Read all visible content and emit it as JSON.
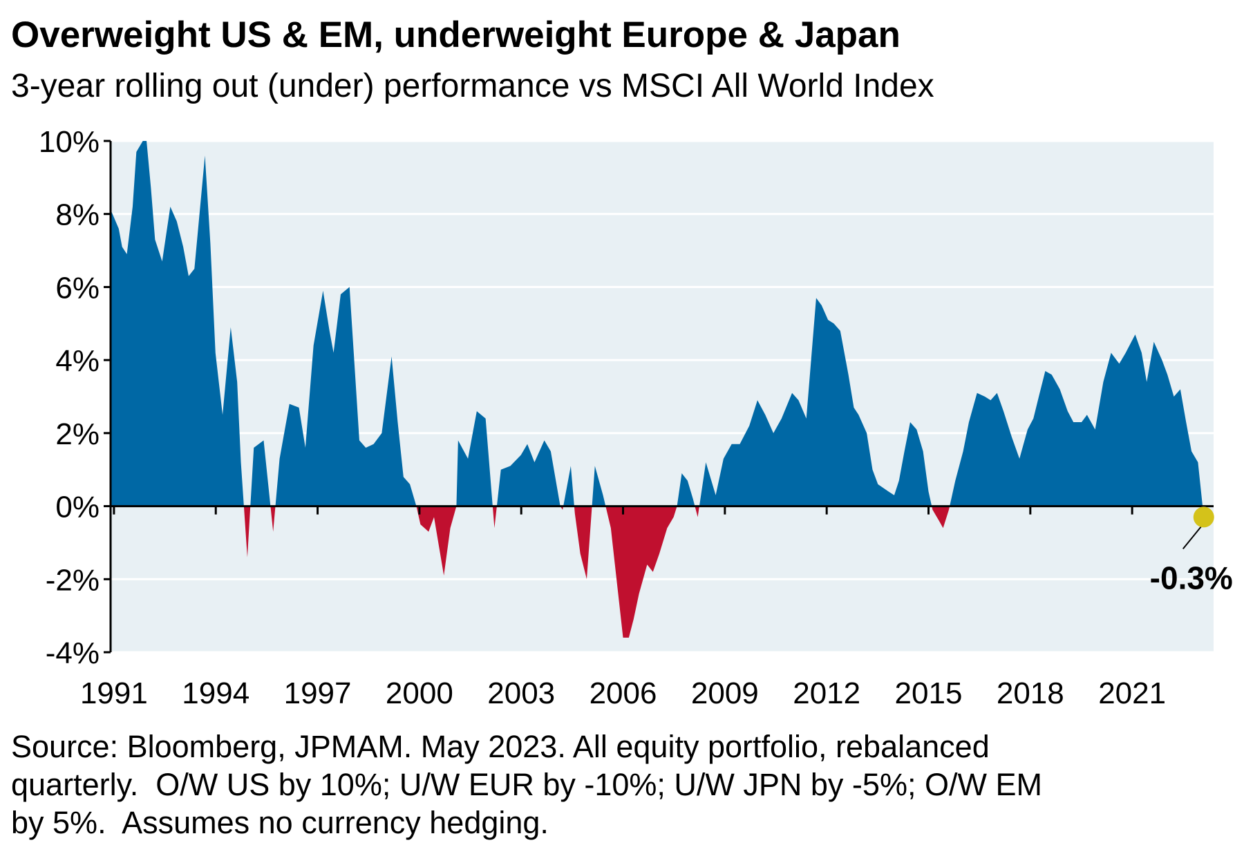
{
  "chart_data": {
    "type": "area",
    "title": "Overweight US & EM, underweight Europe & Japan",
    "subtitle": "3-year rolling out (under) performance vs MSCI All World Index",
    "source": [
      "Source: Bloomberg, JPMAM. May 2023. All equity portfolio, rebalanced",
      "quarterly.  O/W US by 10%; U/W EUR by -10%; U/W JPN by -5%; O/W EM",
      "by 5%.  Assumes no currency hedging."
    ],
    "end_label": "-0.3%",
    "positive_color": "#0068a5",
    "negative_color": "#c0102f",
    "marker_color": "#d4c21a",
    "background": "#e8f0f4",
    "grid": true,
    "xlim": [
      1990.9,
      2023.4
    ],
    "xticks": [
      1991,
      1994,
      1997,
      2000,
      2003,
      2006,
      2009,
      2012,
      2015,
      2018,
      2021
    ],
    "ylim": [
      -4,
      10
    ],
    "yticks": [
      {
        "value": -4,
        "label": "-4%"
      },
      {
        "value": -2,
        "label": "-2%"
      },
      {
        "value": 0,
        "label": "0%"
      },
      {
        "value": 2,
        "label": "2%"
      },
      {
        "value": 4,
        "label": "4%"
      },
      {
        "value": 6,
        "label": "6%"
      },
      {
        "value": 8,
        "label": "8%"
      },
      {
        "value": 10,
        "label": "10%"
      }
    ],
    "x": [
      1990.91,
      1991.14,
      1991.24,
      1991.38,
      1991.55,
      1991.66,
      1991.85,
      1991.95,
      1992.09,
      1992.21,
      1992.42,
      1992.66,
      1992.85,
      1993.04,
      1993.2,
      1993.37,
      1993.68,
      1993.84,
      1993.99,
      1994.2,
      1994.44,
      1994.63,
      1994.74,
      1994.93,
      1995.12,
      1995.41,
      1995.69,
      1995.88,
      1996.17,
      1996.45,
      1996.64,
      1996.88,
      1997.16,
      1997.35,
      1997.47,
      1997.68,
      1997.94,
      1998.23,
      1998.42,
      1998.65,
      1998.89,
      1999.18,
      1999.36,
      1999.53,
      1999.72,
      1999.91,
      2000.03,
      2000.27,
      2000.43,
      2000.72,
      2000.91,
      2001.09,
      2001.14,
      2001.43,
      2001.69,
      2001.95,
      2002.21,
      2002.4,
      2002.68,
      2002.99,
      2003.18,
      2003.39,
      2003.68,
      2003.87,
      2004.15,
      2004.22,
      2004.46,
      2004.58,
      2004.74,
      2004.93,
      2005.17,
      2005.41,
      2005.64,
      2005.88,
      2006.0,
      2006.17,
      2006.31,
      2006.47,
      2006.71,
      2006.88,
      2007.07,
      2007.3,
      2007.49,
      2007.59,
      2007.73,
      2007.9,
      2008.06,
      2008.2,
      2008.44,
      2008.73,
      2008.96,
      2009.2,
      2009.44,
      2009.72,
      2009.96,
      2010.19,
      2010.43,
      2010.67,
      2010.98,
      2011.17,
      2011.4,
      2011.69,
      2011.85,
      2012.04,
      2012.21,
      2012.4,
      2012.64,
      2012.8,
      2012.94,
      2013.18,
      2013.35,
      2013.51,
      2013.82,
      2013.99,
      2014.13,
      2014.29,
      2014.46,
      2014.65,
      2014.84,
      2015.0,
      2015.12,
      2015.31,
      2015.43,
      2015.6,
      2015.79,
      2016.02,
      2016.19,
      2016.43,
      2016.66,
      2016.83,
      2017.02,
      2017.21,
      2017.45,
      2017.68,
      2017.92,
      2018.09,
      2018.25,
      2018.44,
      2018.63,
      2018.87,
      2019.1,
      2019.27,
      2019.51,
      2019.67,
      2019.91,
      2020.15,
      2020.38,
      2020.62,
      2020.81,
      2021.09,
      2021.28,
      2021.43,
      2021.64,
      2021.88,
      2022.04,
      2022.23,
      2022.42,
      2022.59,
      2022.75,
      2022.94,
      2023.11
    ],
    "values": [
      8.1,
      7.6,
      7.1,
      6.9,
      8.2,
      9.7,
      10.0,
      10.1,
      8.7,
      7.3,
      6.7,
      8.2,
      7.8,
      7.1,
      6.3,
      6.5,
      9.6,
      7.2,
      4.2,
      2.5,
      4.9,
      3.4,
      1.2,
      -1.4,
      1.6,
      1.8,
      -0.7,
      1.3,
      2.8,
      2.7,
      1.6,
      4.4,
      5.9,
      4.8,
      4.2,
      5.8,
      6.0,
      1.8,
      1.6,
      1.7,
      2.0,
      4.1,
      2.3,
      0.8,
      0.6,
      0.0,
      -0.5,
      -0.7,
      -0.3,
      -1.9,
      -0.6,
      0.0,
      1.8,
      1.3,
      2.6,
      2.4,
      -0.6,
      1.0,
      1.1,
      1.4,
      1.7,
      1.2,
      1.8,
      1.5,
      0.0,
      -0.1,
      1.1,
      -0.2,
      -1.3,
      -2.0,
      1.1,
      0.3,
      -0.6,
      -2.6,
      -3.6,
      -3.6,
      -3.1,
      -2.4,
      -1.6,
      -1.8,
      -1.3,
      -0.6,
      -0.3,
      0.0,
      0.9,
      0.7,
      0.2,
      -0.3,
      1.2,
      0.3,
      1.3,
      1.7,
      1.7,
      2.2,
      2.9,
      2.5,
      2.0,
      2.4,
      3.1,
      2.9,
      2.4,
      5.7,
      5.5,
      5.1,
      5.0,
      4.8,
      3.6,
      2.7,
      2.5,
      2.0,
      1.0,
      0.6,
      0.4,
      0.3,
      0.7,
      1.5,
      2.3,
      2.1,
      1.5,
      0.4,
      -0.1,
      -0.4,
      -0.6,
      -0.1,
      0.7,
      1.5,
      2.3,
      3.1,
      3.0,
      2.9,
      3.1,
      2.6,
      1.9,
      1.3,
      2.1,
      2.4,
      3.0,
      3.7,
      3.6,
      3.2,
      2.6,
      2.3,
      2.3,
      2.5,
      2.1,
      3.4,
      4.2,
      3.9,
      4.2,
      4.7,
      4.2,
      3.4,
      4.5,
      4.0,
      3.6,
      3.0,
      3.2,
      2.3,
      1.5,
      1.2,
      -0.3
    ]
  }
}
